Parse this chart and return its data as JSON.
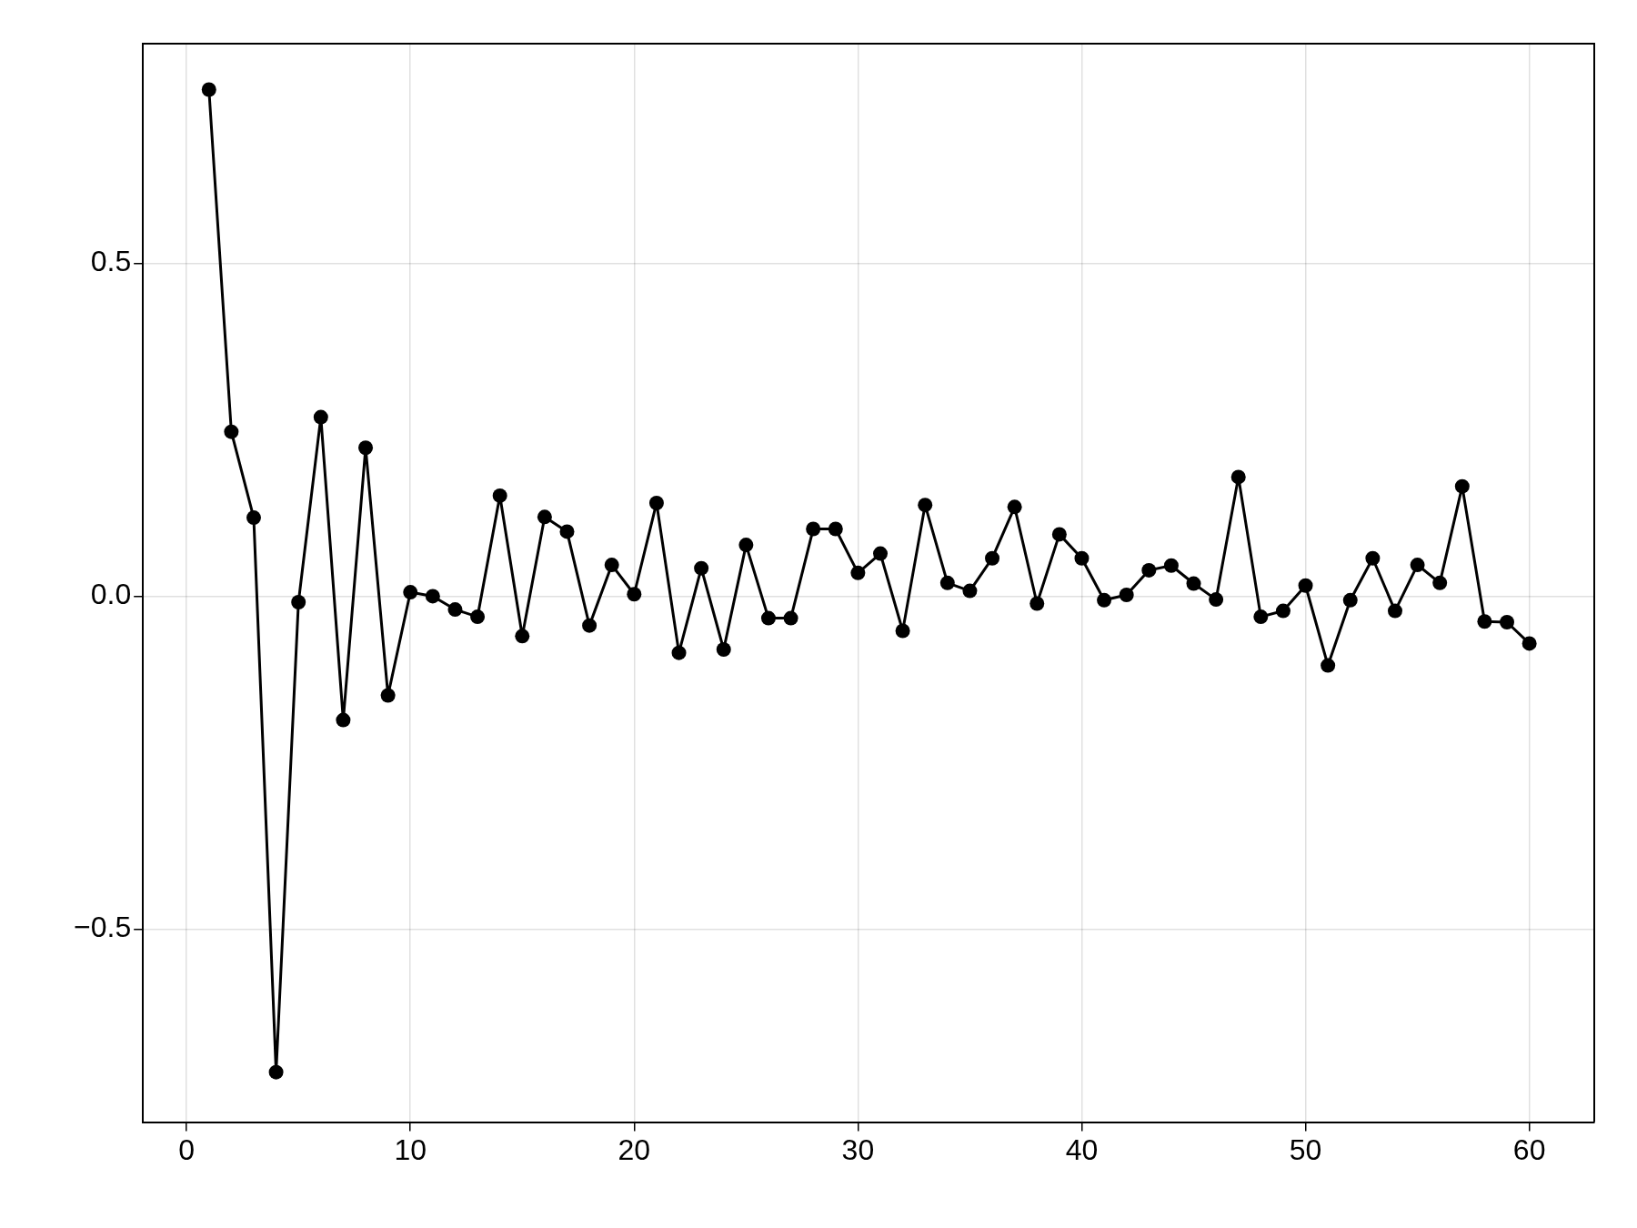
{
  "chart_data": {
    "type": "line",
    "x": [
      1,
      2,
      3,
      4,
      5,
      6,
      7,
      8,
      9,
      10,
      11,
      12,
      13,
      14,
      15,
      16,
      17,
      18,
      19,
      20,
      21,
      22,
      23,
      24,
      25,
      26,
      27,
      28,
      29,
      30,
      31,
      32,
      33,
      34,
      35,
      36,
      37,
      38,
      39,
      40,
      41,
      42,
      43,
      44,
      45,
      46,
      47,
      48,
      49,
      50,
      51,
      52,
      53,
      54,
      55,
      56,
      57,
      58,
      59,
      60
    ],
    "series": [
      {
        "color": "#000000",
        "values": [
          0.761,
          0.247,
          0.118,
          -0.715,
          -0.009,
          0.269,
          -0.186,
          0.223,
          -0.149,
          0.006,
          0.0,
          -0.02,
          -0.031,
          0.151,
          -0.06,
          0.119,
          0.097,
          -0.044,
          0.047,
          0.003,
          0.14,
          -0.085,
          0.042,
          -0.08,
          0.077,
          -0.033,
          -0.033,
          0.101,
          0.101,
          0.035,
          0.064,
          -0.052,
          0.137,
          0.02,
          0.008,
          0.057,
          0.134,
          -0.011,
          0.093,
          0.057,
          -0.006,
          0.002,
          0.039,
          0.046,
          0.019,
          -0.005,
          0.179,
          -0.031,
          -0.022,
          0.016,
          -0.104,
          -0.006,
          0.057,
          -0.022,
          0.047,
          0.02,
          0.165,
          -0.038,
          -0.039,
          -0.071
        ]
      }
    ],
    "xlim": [
      -1.95,
      62.9
    ],
    "ylim": [
      -0.79,
      0.83
    ],
    "xticks": [
      0,
      10,
      20,
      30,
      40,
      50,
      60
    ],
    "yticks": [
      {
        "value": -0.5,
        "label": "−0.5"
      },
      {
        "value": 0,
        "label": "0.0"
      },
      {
        "value": 0.5,
        "label": "0.5"
      }
    ],
    "grid": true,
    "legend": false,
    "marker": "circle",
    "line_style": "solid"
  }
}
